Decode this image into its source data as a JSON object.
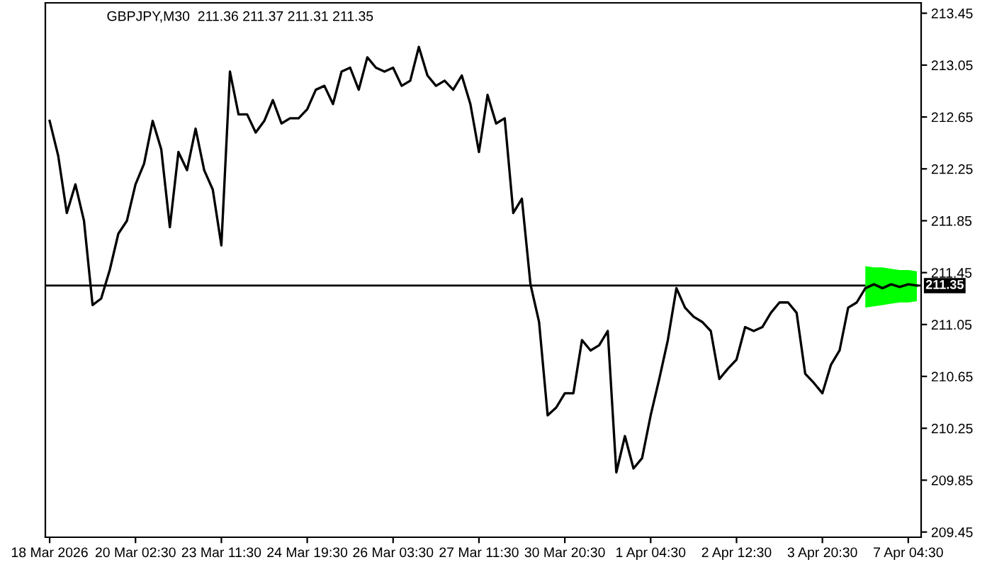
{
  "chart_data": {
    "type": "line",
    "title": "GBPJPY,M30  211.36 211.37 211.31 211.35",
    "categories": [
      "18 Mar 2026",
      null,
      null,
      null,
      null,
      null,
      null,
      null,
      null,
      null,
      "20 Mar 02:30",
      null,
      null,
      null,
      null,
      null,
      null,
      null,
      null,
      null,
      "23 Mar 11:30",
      null,
      null,
      null,
      null,
      null,
      null,
      null,
      null,
      null,
      "24 Mar 19:30",
      null,
      null,
      null,
      null,
      null,
      null,
      null,
      null,
      null,
      "26 Mar 03:30",
      null,
      null,
      null,
      null,
      null,
      null,
      null,
      null,
      null,
      "27 Mar 11:30",
      null,
      null,
      null,
      null,
      null,
      null,
      null,
      null,
      null,
      "30 Mar 20:30",
      null,
      null,
      null,
      null,
      null,
      null,
      null,
      null,
      null,
      "1 Apr 04:30",
      null,
      null,
      null,
      null,
      null,
      null,
      null,
      null,
      null,
      "2 Apr 12:30",
      null,
      null,
      null,
      null,
      null,
      null,
      null,
      null,
      null,
      "3 Apr 20:30",
      null,
      null,
      null,
      null,
      null,
      null,
      null,
      null,
      null,
      "7 Apr 04:30",
      null
    ],
    "series": [
      {
        "color": "#000000",
        "values": [
          212.62,
          212.35,
          211.91,
          212.13,
          211.85,
          211.2,
          211.25,
          211.47,
          211.75,
          211.85,
          212.13,
          212.29,
          212.62,
          212.4,
          211.8,
          212.38,
          212.24,
          212.56,
          212.24,
          212.09,
          211.66,
          213.0,
          212.67,
          212.67,
          212.53,
          212.62,
          212.78,
          212.6,
          212.64,
          212.64,
          212.71,
          212.86,
          212.89,
          212.75,
          213.0,
          213.03,
          212.86,
          213.11,
          213.03,
          213.0,
          213.03,
          212.89,
          212.93,
          213.19,
          212.97,
          212.89,
          212.93,
          212.86,
          212.97,
          212.75,
          212.38,
          212.82,
          212.6,
          212.64,
          211.91,
          212.02,
          211.36,
          211.07,
          210.35,
          210.41,
          210.52,
          210.52,
          210.93,
          210.85,
          210.89,
          211.0,
          209.91,
          210.19,
          209.94,
          210.02,
          210.35,
          210.63,
          210.93,
          211.33,
          211.18,
          211.11,
          211.07,
          211.0,
          210.63,
          210.71,
          210.78,
          211.03,
          211.0,
          211.03,
          211.14,
          211.22,
          211.22,
          211.14,
          210.67,
          210.6,
          210.52,
          210.74,
          210.85,
          211.18,
          211.22,
          211.33,
          211.36,
          211.33,
          211.36,
          211.34,
          211.36,
          211.35
        ]
      },
      {
        "color": "#00ff00",
        "values": [
          null,
          null,
          null,
          null,
          null,
          null,
          null,
          null,
          null,
          null,
          null,
          null,
          null,
          null,
          null,
          null,
          null,
          null,
          null,
          null,
          null,
          null,
          null,
          null,
          null,
          null,
          null,
          null,
          null,
          null,
          null,
          null,
          null,
          null,
          null,
          null,
          null,
          null,
          null,
          null,
          null,
          null,
          null,
          null,
          null,
          null,
          null,
          null,
          null,
          null,
          null,
          null,
          null,
          null,
          null,
          null,
          null,
          null,
          null,
          null,
          null,
          null,
          null,
          null,
          null,
          null,
          null,
          null,
          null,
          null,
          null,
          null,
          null,
          null,
          null,
          null,
          null,
          null,
          null,
          null,
          null,
          null,
          null,
          null,
          null,
          null,
          null,
          null,
          null,
          null,
          null,
          null,
          null,
          null,
          null,
          null,
          null,
          null,
          null,
          null,
          null,
          null
        ],
        "upper": [
          null,
          null,
          null,
          null,
          null,
          null,
          null,
          null,
          null,
          null,
          null,
          null,
          null,
          null,
          null,
          null,
          null,
          null,
          null,
          null,
          null,
          null,
          null,
          null,
          null,
          null,
          null,
          null,
          null,
          null,
          null,
          null,
          null,
          null,
          null,
          null,
          null,
          null,
          null,
          null,
          null,
          null,
          null,
          null,
          null,
          null,
          null,
          null,
          null,
          null,
          null,
          null,
          null,
          null,
          null,
          null,
          null,
          null,
          null,
          null,
          null,
          null,
          null,
          null,
          null,
          null,
          null,
          null,
          null,
          null,
          null,
          null,
          null,
          null,
          null,
          null,
          null,
          null,
          null,
          null,
          null,
          null,
          null,
          null,
          null,
          null,
          null,
          null,
          null,
          null,
          null,
          null,
          null,
          null,
          null,
          211.5,
          211.49,
          211.49,
          211.48,
          211.47,
          211.47,
          211.46
        ],
        "lower": [
          null,
          null,
          null,
          null,
          null,
          null,
          null,
          null,
          null,
          null,
          null,
          null,
          null,
          null,
          null,
          null,
          null,
          null,
          null,
          null,
          null,
          null,
          null,
          null,
          null,
          null,
          null,
          null,
          null,
          null,
          null,
          null,
          null,
          null,
          null,
          null,
          null,
          null,
          null,
          null,
          null,
          null,
          null,
          null,
          null,
          null,
          null,
          null,
          null,
          null,
          null,
          null,
          null,
          null,
          null,
          null,
          null,
          null,
          null,
          null,
          null,
          null,
          null,
          null,
          null,
          null,
          null,
          null,
          null,
          null,
          null,
          null,
          null,
          null,
          null,
          null,
          null,
          null,
          null,
          null,
          null,
          null,
          null,
          null,
          null,
          null,
          null,
          null,
          null,
          null,
          null,
          null,
          null,
          null,
          null,
          211.18,
          211.19,
          211.2,
          211.21,
          211.22,
          211.22,
          211.23
        ]
      }
    ],
    "ylim": [
      209.41,
      213.53
    ],
    "yticks": [
      209.45,
      209.85,
      210.25,
      210.65,
      211.05,
      211.45,
      211.85,
      212.25,
      212.65,
      213.05,
      213.45
    ],
    "ref_lines": [
      {
        "axis": "y",
        "value": 211.35,
        "label": "211.35",
        "color": "#000000"
      }
    ],
    "grid": false,
    "legend": false
  }
}
